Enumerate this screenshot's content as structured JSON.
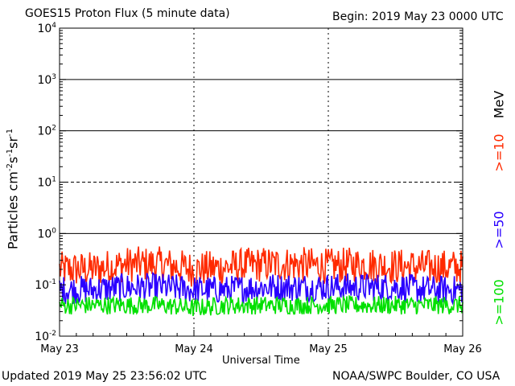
{
  "header": {
    "title": "GOES15 Proton Flux (5 minute data)",
    "begin": "Begin: 2019 May 23 0000 UTC"
  },
  "footer": {
    "updated": "Updated 2019 May 25 23:56:02 UTC",
    "credit": "NOAA/SWPC Boulder, CO USA"
  },
  "right_labels": {
    "unit": "MeV",
    "ge10": ">=10",
    "ge50": ">=50",
    "ge100": ">=100"
  },
  "chart_data": {
    "type": "line",
    "title": "GOES15 Proton Flux (5 minute data)",
    "xlabel": "Universal Time",
    "ylabel": "Particles cm-2s-1sr-1",
    "y_scale": "log",
    "ylim": [
      0.01,
      10000
    ],
    "yticks": [
      {
        "base": "10",
        "exp": "-2",
        "value": 0.01
      },
      {
        "base": "10",
        "exp": "-1",
        "value": 0.1
      },
      {
        "base": "10",
        "exp": "0",
        "value": 1
      },
      {
        "base": "10",
        "exp": "1",
        "value": 10
      },
      {
        "base": "10",
        "exp": "2",
        "value": 100
      },
      {
        "base": "10",
        "exp": "3",
        "value": 1000
      },
      {
        "base": "10",
        "exp": "4",
        "value": 10000
      }
    ],
    "xlim": [
      "2019-05-23",
      "2019-05-26"
    ],
    "x_ticks": [
      "May 23",
      "May 24",
      "May 25",
      "May 26"
    ],
    "reference_lines": [
      1,
      10,
      100,
      1000
    ],
    "reference_line_styles": [
      "solid",
      "dashed",
      "solid",
      "solid"
    ],
    "series": [
      {
        "name": ">=10 MeV",
        "color": "#ff2a00",
        "x": [
          "2019-05-23 00:00",
          "2019-05-23 06:00",
          "2019-05-23 12:00",
          "2019-05-23 18:00",
          "2019-05-24 00:00",
          "2019-05-24 06:00",
          "2019-05-24 12:00",
          "2019-05-24 18:00",
          "2019-05-25 00:00",
          "2019-05-25 06:00",
          "2019-05-25 12:00",
          "2019-05-25 18:00",
          "2019-05-26 00:00"
        ],
        "values": [
          0.2,
          0.2,
          0.25,
          0.25,
          0.2,
          0.22,
          0.25,
          0.25,
          0.23,
          0.25,
          0.23,
          0.22,
          0.22
        ]
      },
      {
        "name": ">=50 MeV",
        "color": "#2a00ff",
        "x": [
          "2019-05-23 00:00",
          "2019-05-23 06:00",
          "2019-05-23 12:00",
          "2019-05-23 18:00",
          "2019-05-24 00:00",
          "2019-05-24 06:00",
          "2019-05-24 12:00",
          "2019-05-24 18:00",
          "2019-05-25 00:00",
          "2019-05-25 06:00",
          "2019-05-25 12:00",
          "2019-05-25 18:00",
          "2019-05-26 00:00"
        ],
        "values": [
          0.08,
          0.08,
          0.09,
          0.09,
          0.08,
          0.08,
          0.09,
          0.09,
          0.09,
          0.09,
          0.09,
          0.08,
          0.08
        ]
      },
      {
        "name": ">=100 MeV",
        "color": "#00e000",
        "x": [
          "2019-05-23 00:00",
          "2019-05-23 06:00",
          "2019-05-23 12:00",
          "2019-05-23 18:00",
          "2019-05-24 00:00",
          "2019-05-24 06:00",
          "2019-05-24 12:00",
          "2019-05-24 18:00",
          "2019-05-25 00:00",
          "2019-05-25 06:00",
          "2019-05-25 12:00",
          "2019-05-25 18:00",
          "2019-05-26 00:00"
        ],
        "values": [
          0.04,
          0.04,
          0.04,
          0.04,
          0.035,
          0.04,
          0.04,
          0.04,
          0.04,
          0.04,
          0.04,
          0.04,
          0.04
        ]
      }
    ]
  }
}
